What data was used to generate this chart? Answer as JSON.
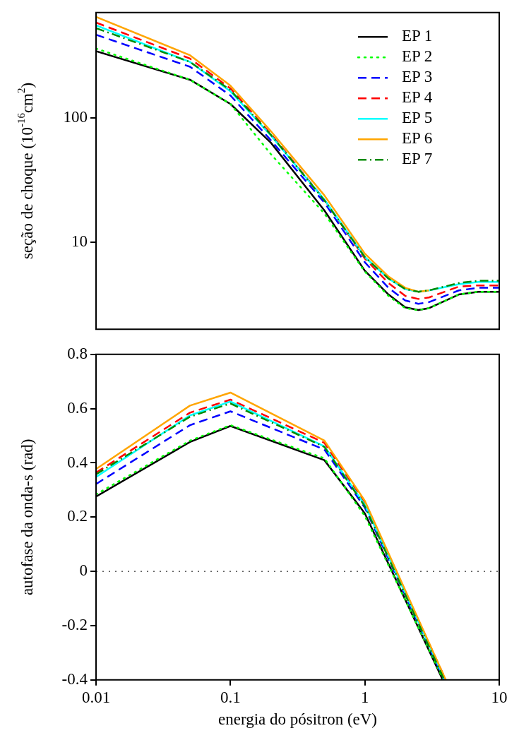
{
  "chart_data": [
    {
      "type": "line",
      "ylabel": "seção de choque (10$^{-16}$cm$^{2}$)",
      "log": "xy",
      "xlim": [
        0.01,
        10
      ],
      "xticks": [
        0.01,
        0.1,
        1,
        10
      ],
      "ylim": [
        2,
        700
      ],
      "yticks": [
        10,
        100
      ],
      "tick_labels": "y",
      "legend": "top right",
      "x": [
        0.01,
        0.05,
        0.1,
        0.2,
        0.5,
        1,
        1.5,
        2,
        2.5,
        3,
        5,
        7,
        10
      ],
      "series": [
        {
          "name": "EP 1",
          "color": "#000000",
          "line_style": "solid",
          "values": [
            343,
            202,
            129,
            63,
            18,
            5.9,
            3.8,
            3.0,
            2.85,
            2.95,
            3.8,
            4.0,
            4.0
          ]
        },
        {
          "name": "EP 2",
          "color": "#00ff00",
          "line_style": "dotted",
          "values": [
            360,
            202,
            129,
            51,
            17,
            5.8,
            3.7,
            2.95,
            2.85,
            2.95,
            3.8,
            4.0,
            4.0
          ]
        },
        {
          "name": "EP 3",
          "color": "#0000ff",
          "line_style": "dashed",
          "values": [
            464,
            257,
            151,
            66,
            20.8,
            6.9,
            4.3,
            3.4,
            3.2,
            3.3,
            4.1,
            4.3,
            4.3
          ]
        },
        {
          "name": "EP 4",
          "color": "#ff0000",
          "line_style": "dashed",
          "values": [
            582,
            299,
            172,
            74,
            22,
            7.4,
            4.7,
            3.7,
            3.5,
            3.6,
            4.4,
            4.5,
            4.5
          ]
        },
        {
          "name": "EP 5",
          "color": "#00ffff",
          "line_style": "solid",
          "values": [
            553,
            281,
            163,
            72,
            22,
            7.6,
            5.1,
            4.2,
            4.0,
            4.1,
            4.6,
            4.8,
            4.8
          ]
        },
        {
          "name": "EP 6",
          "color": "#ffa500",
          "line_style": "solid",
          "values": [
            647,
            318,
            181,
            78,
            23.8,
            8.1,
            5.3,
            4.3,
            4.0,
            4.1,
            null,
            null,
            null
          ]
        },
        {
          "name": "EP 7",
          "color": "#008b00",
          "line_style": "dashdot",
          "values": [
            525,
            281,
            167,
            73,
            21.7,
            7.6,
            5.1,
            4.2,
            4.0,
            4.1,
            4.7,
            4.9,
            4.9
          ]
        }
      ]
    },
    {
      "type": "line",
      "xlabel": "energia do pósitron (eV)",
      "ylabel": "autofase da onda-s (rad)",
      "log": "x",
      "xlim": [
        0.01,
        10
      ],
      "xticks": [
        0.01,
        0.1,
        1,
        10
      ],
      "ylim": [
        -0.4,
        0.8
      ],
      "yticks": [
        -0.4,
        -0.2,
        0,
        0.2,
        0.4,
        0.6,
        0.8
      ],
      "ref_lines": [
        {
          "axis": "y",
          "value": 0,
          "color": "#000000",
          "line_style": "dotted"
        }
      ],
      "series": [
        {
          "color": "#000000",
          "line_style": "solid",
          "x": [
            0.01,
            0.05,
            0.1,
            0.5,
            1,
            3.8
          ],
          "values": [
            0.276,
            0.477,
            0.536,
            0.41,
            0.214,
            -0.4
          ]
        },
        {
          "color": "#00ff00",
          "line_style": "dotted",
          "x": [
            0.01,
            0.05,
            0.1,
            0.5,
            1,
            3.85
          ],
          "values": [
            0.284,
            0.482,
            0.539,
            0.417,
            0.204,
            -0.4
          ]
        },
        {
          "color": "#0000ff",
          "line_style": "dashed",
          "x": [
            0.01,
            0.05,
            0.1,
            0.5,
            1,
            3.9
          ],
          "values": [
            0.322,
            0.539,
            0.59,
            0.449,
            0.235,
            -0.4
          ]
        },
        {
          "color": "#ff0000",
          "line_style": "dashed",
          "x": [
            0.01,
            0.05,
            0.1,
            0.5,
            1,
            4.0
          ],
          "values": [
            0.364,
            0.585,
            0.633,
            0.474,
            0.25,
            -0.4
          ]
        },
        {
          "color": "#00ffff",
          "line_style": "solid",
          "x": [
            0.01,
            0.05,
            0.1,
            0.5,
            1,
            3.95
          ],
          "values": [
            0.348,
            0.575,
            0.626,
            0.461,
            0.245,
            -0.4
          ]
        },
        {
          "color": "#ffa500",
          "line_style": "solid",
          "x": [
            0.01,
            0.05,
            0.1,
            0.5,
            1,
            4.0
          ],
          "values": [
            0.377,
            0.611,
            0.659,
            0.482,
            0.26,
            -0.4
          ]
        },
        {
          "color": "#008b00",
          "line_style": "dashdot",
          "x": [
            0.01,
            0.05,
            0.1,
            0.5,
            1,
            3.9
          ],
          "values": [
            0.358,
            0.57,
            0.619,
            0.459,
            0.24,
            -0.4
          ]
        }
      ]
    }
  ]
}
